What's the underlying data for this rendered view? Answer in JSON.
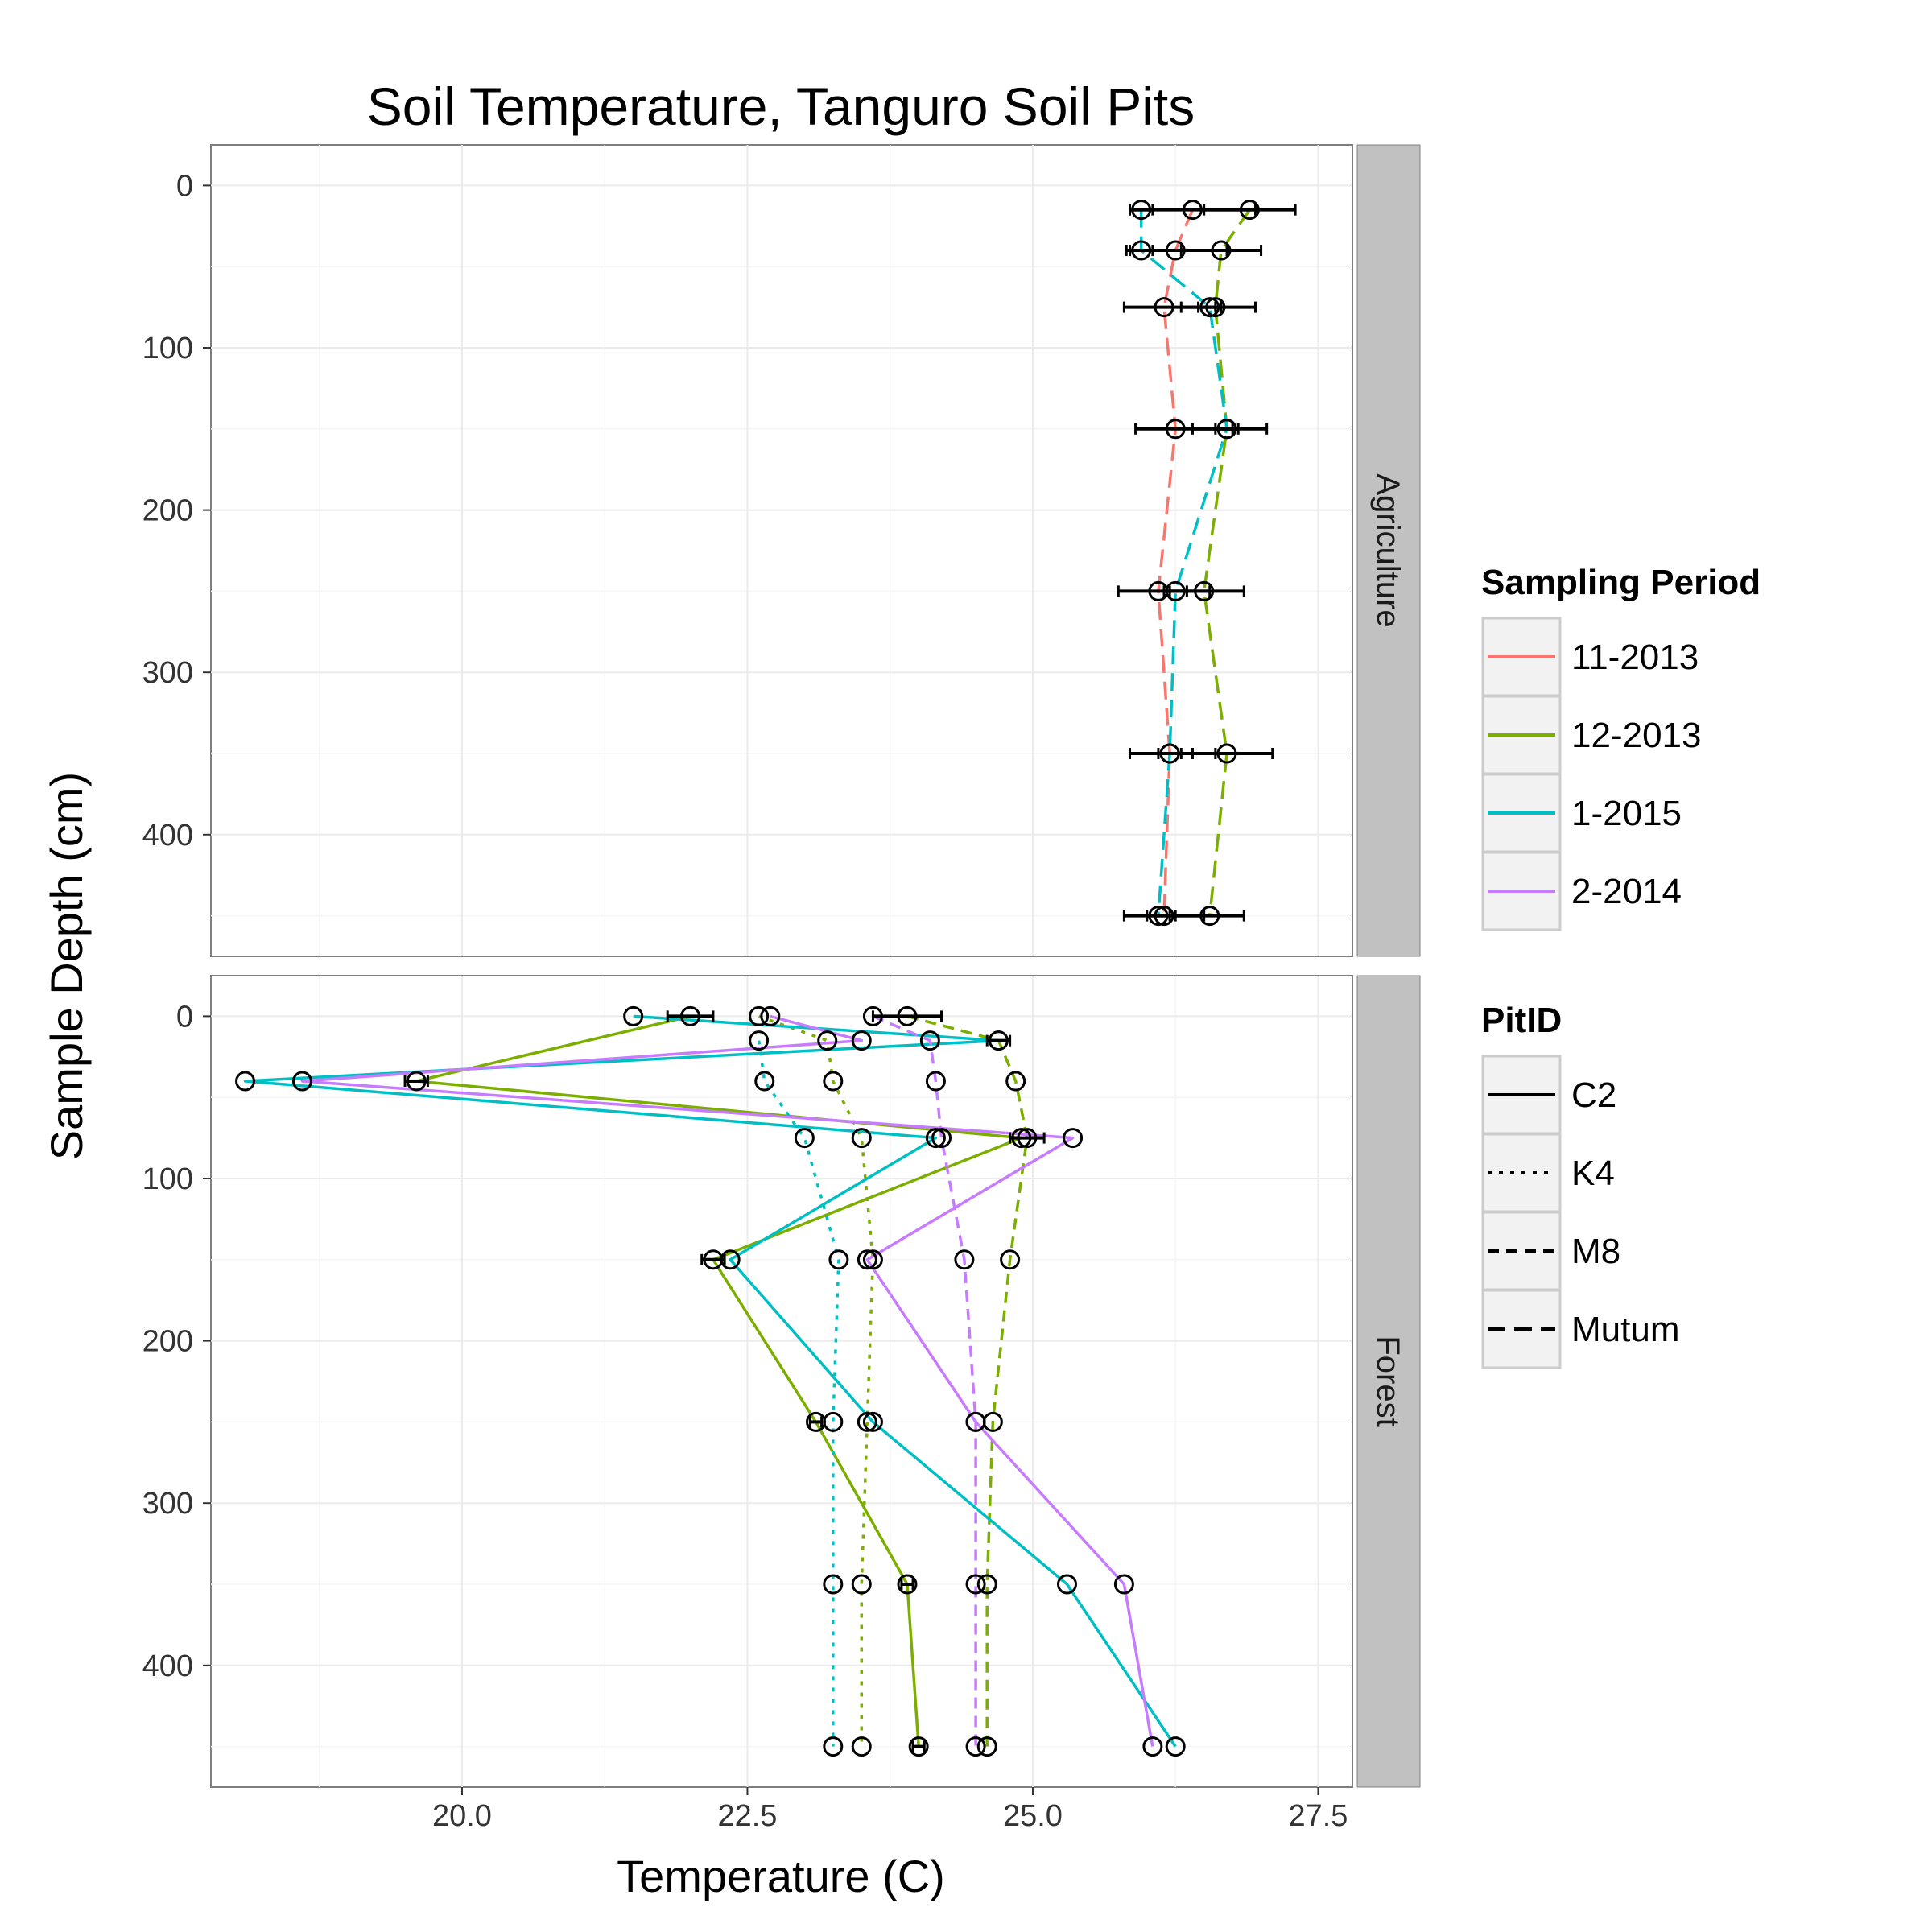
{
  "chart_data": {
    "type": "line",
    "title": "Soil Temperature, Tanguro Soil Pits",
    "xlabel": "Temperature (C)",
    "ylabel": "Sample Depth (cm)",
    "xlim": [
      17.8,
      27.8
    ],
    "x_ticks": [
      "20.0",
      "22.5",
      "25.0",
      "27.5"
    ],
    "x_tick_values": [
      20.0,
      22.5,
      25.0,
      27.5
    ],
    "y_ticks": [
      "0",
      "100",
      "200",
      "300",
      "400"
    ],
    "y_tick_values": [
      0,
      100,
      200,
      300,
      400
    ],
    "ylim_reversed": [
      475,
      -25
    ],
    "grid": true,
    "legend_position": "right",
    "colors": {
      "11-2013": "#F8766D",
      "12-2013": "#7CAE00",
      "1-2015": "#00BFC4",
      "2-2014": "#C77CFF",
      "panel_bg": "#FFFFFF",
      "grid": "#EBEBEB",
      "strip_bg": "#C1C1C1"
    },
    "legends": [
      {
        "title": "Sampling Period",
        "keys": [
          "11-2013",
          "12-2013",
          "1-2015",
          "2-2014"
        ]
      },
      {
        "title": "PitID",
        "keys": [
          "C2",
          "K4",
          "M8",
          "Mutum"
        ]
      }
    ],
    "linetypes": {
      "C2": "solid",
      "K4": "dotted",
      "M8": "dashed",
      "Mutum": "longdash"
    },
    "panels": [
      {
        "label": "Agriculture",
        "series": [
          {
            "period": "11-2013",
            "pit": "Mutum",
            "points": [
              [
                26.4,
                15
              ],
              [
                26.25,
                40
              ],
              [
                26.15,
                75
              ],
              [
                26.25,
                150
              ],
              [
                26.1,
                250
              ],
              [
                26.2,
                350
              ],
              [
                26.15,
                450
              ]
            ],
            "xerr": [
              [
                25.85,
                26.95
              ],
              [
                25.82,
                26.7
              ],
              [
                25.8,
                26.6
              ],
              [
                25.9,
                26.75
              ],
              [
                25.75,
                26.55
              ],
              [
                25.85,
                26.6
              ],
              [
                25.8,
                26.5
              ]
            ]
          },
          {
            "period": "12-2013",
            "pit": "Mutum",
            "points": [
              [
                26.9,
                15
              ],
              [
                26.65,
                40
              ],
              [
                26.6,
                75
              ],
              [
                26.7,
                150
              ],
              [
                26.5,
                250
              ],
              [
                26.7,
                350
              ],
              [
                26.55,
                450
              ]
            ],
            "xerr": [
              [
                26.5,
                27.3
              ],
              [
                26.3,
                27.0
              ],
              [
                26.3,
                26.95
              ],
              [
                26.4,
                27.05
              ],
              [
                26.2,
                26.85
              ],
              [
                26.4,
                27.1
              ],
              [
                26.25,
                26.85
              ]
            ]
          },
          {
            "period": "1-2015",
            "pit": "Mutum",
            "points": [
              [
                25.95,
                15
              ],
              [
                25.95,
                40
              ],
              [
                26.55,
                75
              ],
              [
                26.7,
                150
              ],
              [
                26.25,
                250
              ],
              [
                26.2,
                350
              ],
              [
                26.1,
                450
              ]
            ],
            "xerr": [
              [
                25.85,
                26.05
              ],
              [
                25.85,
                26.05
              ],
              [
                26.45,
                26.65
              ],
              [
                26.6,
                26.8
              ],
              [
                26.15,
                26.35
              ],
              [
                26.1,
                26.3
              ],
              [
                26.0,
                26.2
              ]
            ]
          }
        ]
      },
      {
        "label": "Forest",
        "series": [
          {
            "period": "12-2013",
            "pit": "C2",
            "points": [
              [
                22.0,
                0
              ],
              [
                19.6,
                40
              ],
              [
                24.9,
                75
              ],
              [
                22.2,
                150
              ],
              [
                23.1,
                250
              ],
              [
                23.9,
                350
              ],
              [
                24.0,
                450
              ]
            ],
            "xerr": [
              [
                21.8,
                22.2
              ],
              [
                19.5,
                19.7
              ],
              [
                24.8,
                25.1
              ],
              [
                22.1,
                22.3
              ],
              [
                23.05,
                23.15
              ],
              [
                23.85,
                23.95
              ],
              [
                23.95,
                24.05
              ]
            ]
          },
          {
            "period": "12-2013",
            "pit": "K4",
            "points": [
              [
                22.6,
                0
              ],
              [
                23.2,
                15
              ],
              [
                23.25,
                40
              ],
              [
                23.5,
                75
              ],
              [
                23.6,
                150
              ],
              [
                23.55,
                250
              ],
              [
                23.5,
                350
              ],
              [
                23.5,
                450
              ]
            ]
          },
          {
            "period": "12-2013",
            "pit": "M8",
            "points": [
              [
                23.9,
                0
              ],
              [
                24.7,
                15
              ],
              [
                24.85,
                40
              ],
              [
                24.95,
                75
              ],
              [
                24.8,
                150
              ],
              [
                24.65,
                250
              ],
              [
                24.6,
                350
              ],
              [
                24.6,
                450
              ]
            ],
            "xerr": [
              [
                23.6,
                24.2
              ],
              [
                24.6,
                24.8
              ]
            ]
          },
          {
            "period": "1-2015",
            "pit": "C2",
            "points": [
              [
                21.5,
                0
              ],
              [
                24.7,
                15
              ],
              [
                18.1,
                40
              ],
              [
                24.15,
                75
              ],
              [
                22.35,
                150
              ],
              [
                23.6,
                250
              ],
              [
                25.3,
                350
              ],
              [
                26.25,
                450
              ]
            ]
          },
          {
            "period": "1-2015",
            "pit": "K4",
            "points": [
              [
                22.6,
                15
              ],
              [
                22.65,
                40
              ],
              [
                23.0,
                75
              ],
              [
                23.3,
                150
              ],
              [
                23.25,
                250
              ],
              [
                23.25,
                350
              ],
              [
                23.25,
                450
              ]
            ]
          },
          {
            "period": "2-2014",
            "pit": "C2",
            "points": [
              [
                22.7,
                0
              ],
              [
                23.5,
                15
              ],
              [
                18.6,
                40
              ],
              [
                25.35,
                75
              ],
              [
                23.55,
                150
              ],
              [
                24.5,
                250
              ],
              [
                25.8,
                350
              ],
              [
                26.05,
                450
              ]
            ]
          },
          {
            "period": "2-2014",
            "pit": "M8",
            "points": [
              [
                23.6,
                0
              ],
              [
                24.1,
                15
              ],
              [
                24.15,
                40
              ],
              [
                24.2,
                75
              ],
              [
                24.4,
                150
              ],
              [
                24.5,
                250
              ],
              [
                24.5,
                350
              ],
              [
                24.5,
                450
              ]
            ]
          }
        ]
      }
    ]
  }
}
